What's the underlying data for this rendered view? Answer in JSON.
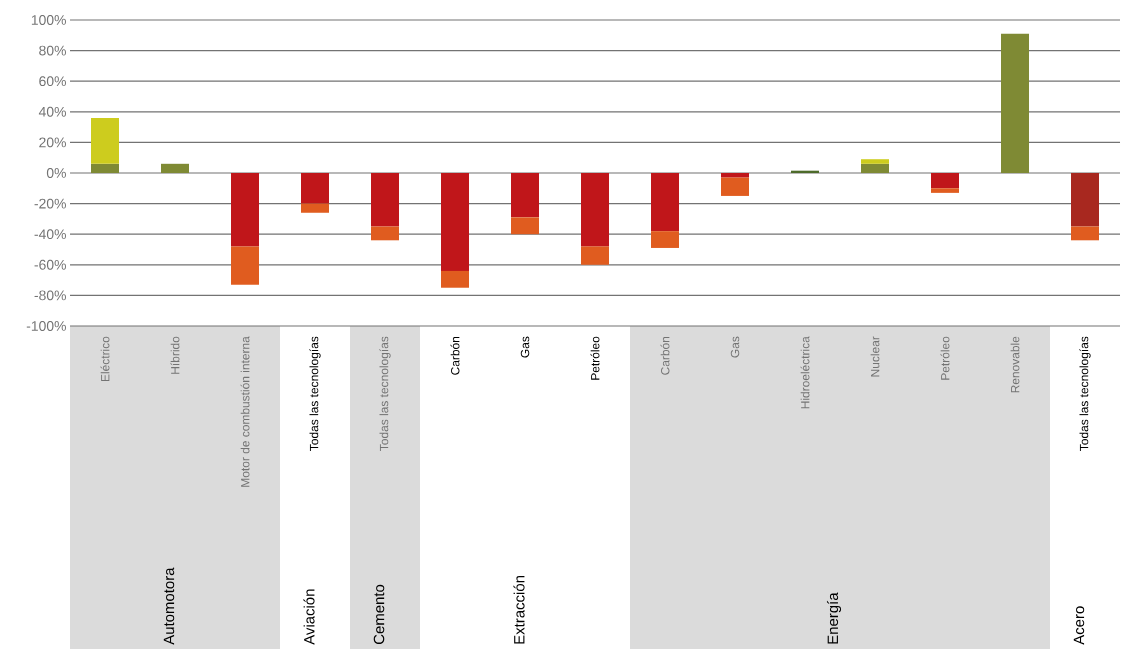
{
  "chart_data": {
    "type": "bar",
    "stacked": true,
    "categories": [
      "Eléctrico",
      "Híbrido",
      "Motor de combustión interna",
      "Todas las tecnologías",
      "Todas las tecnologías",
      "Carbón",
      "Gas",
      "Petróleo",
      "Carbón",
      "Gas",
      "Hidroeléctrica",
      "Nuclear",
      "Petróleo",
      "Renovable",
      "Todas las tecnologías"
    ],
    "series": [
      {
        "color": "#7f8a34",
        "colors": [
          null,
          null,
          null,
          null,
          null,
          null,
          null,
          null,
          null,
          null,
          "#4d6b2a",
          null,
          null,
          null,
          null
        ],
        "values": [
          6,
          6,
          null,
          null,
          null,
          null,
          null,
          null,
          null,
          null,
          1.5,
          6,
          null,
          91,
          null
        ]
      },
      {
        "color": "#cdcc1e",
        "values": [
          30,
          null,
          null,
          null,
          null,
          null,
          null,
          null,
          null,
          null,
          null,
          3,
          null,
          null,
          null
        ]
      },
      {
        "color": "#c0161a",
        "colors": [
          null,
          null,
          null,
          null,
          null,
          null,
          null,
          null,
          null,
          null,
          null,
          null,
          null,
          null,
          "#a8281f"
        ],
        "values": [
          null,
          null,
          -48,
          -20,
          -35,
          -64,
          -29,
          -48,
          -38,
          -3,
          null,
          null,
          -10,
          null,
          -35
        ]
      },
      {
        "color": "#e05c1f",
        "values": [
          null,
          null,
          -25,
          -6,
          -9,
          -11,
          -11,
          -12,
          -11,
          -12,
          null,
          null,
          -3,
          null,
          -9
        ]
      }
    ],
    "ylim": [
      -100,
      100
    ],
    "yticks": [
      {
        "value": -100,
        "label": "-100%"
      },
      {
        "value": -80,
        "label": "-80%"
      },
      {
        "value": -60,
        "label": "-60%"
      },
      {
        "value": -40,
        "label": "-40%"
      },
      {
        "value": -20,
        "label": "-20%"
      },
      {
        "value": 0,
        "label": "0%"
      },
      {
        "value": 20,
        "label": "20%"
      },
      {
        "value": 40,
        "label": "40%"
      },
      {
        "value": 60,
        "label": "60%"
      },
      {
        "value": 80,
        "label": "80%"
      },
      {
        "value": 100,
        "label": "100%"
      }
    ],
    "grid": true,
    "annotations": [
      "Automotora",
      "Aviación",
      "Cemento",
      "Extracción",
      "Energía",
      "Acero"
    ]
  }
}
